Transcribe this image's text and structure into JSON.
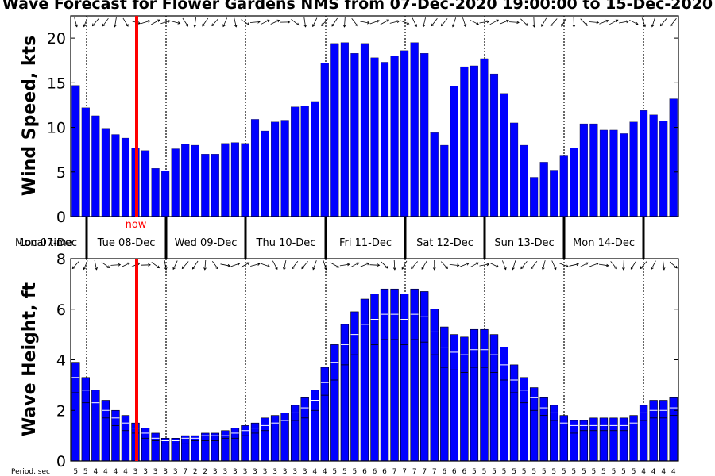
{
  "chart_data": [
    {
      "type": "bar",
      "title": "Wave Forecast for Flower Gardens NMS from 07-Dec-2020 19:00:00 to 15-Dec-2020",
      "ylabel": "Wind Speed, kts",
      "ylim": [
        0,
        22.5
      ],
      "yticks": [
        "0",
        "5",
        "10",
        "15",
        "20"
      ],
      "bar_color": "#0000ff",
      "values": [
        14.7,
        12.2,
        11.3,
        9.9,
        9.2,
        8.8,
        7.7,
        7.4,
        5.4,
        5.1,
        7.6,
        8.1,
        8.0,
        7.0,
        7.0,
        8.2,
        8.3,
        8.2,
        10.9,
        9.6,
        10.6,
        10.8,
        12.3,
        12.4,
        12.9,
        17.2,
        19.4,
        19.5,
        18.3,
        19.4,
        17.8,
        17.3,
        18.0,
        18.6,
        19.5,
        18.3,
        9.4,
        8.0,
        14.6,
        16.8,
        16.9,
        17.7,
        16.0,
        13.8,
        10.5,
        8.0,
        4.4,
        6.1,
        5.2,
        6.8,
        7.7,
        10.4,
        10.4,
        9.7,
        9.7,
        9.3,
        10.6,
        11.9,
        11.4,
        10.7,
        13.2
      ],
      "wind_direction_arrows": true
    },
    {
      "type": "bar",
      "ylabel": "Wave Height, ft",
      "ylim": [
        0,
        8
      ],
      "yticks": [
        "0",
        "2",
        "4",
        "6",
        "8"
      ],
      "bar_color": "#0000ff",
      "series": [
        {
          "values": [
            3.9,
            3.3,
            2.8,
            2.4,
            2.0,
            1.8,
            1.5,
            1.3,
            1.1,
            0.9,
            0.9,
            1.0,
            1.0,
            1.1,
            1.1,
            1.2,
            1.3,
            1.4,
            1.5,
            1.7,
            1.8,
            1.9,
            2.2,
            2.5,
            2.8,
            3.7,
            4.6,
            5.4,
            5.9,
            6.4,
            6.6,
            6.8,
            6.8,
            6.6,
            6.8,
            6.7,
            6.0,
            5.3,
            5.0,
            4.9,
            5.2,
            5.2,
            5.0,
            4.5,
            3.8,
            3.3,
            2.9,
            2.5,
            2.2,
            1.8,
            1.6,
            1.6,
            1.7,
            1.7,
            1.7,
            1.7,
            1.8,
            2.2,
            2.4,
            2.4,
            2.5
          ]
        },
        {
          "values": [
            3.3,
            2.8,
            2.3,
            2.0,
            1.7,
            1.5,
            1.3,
            1.1,
            0.9,
            0.8,
            0.8,
            0.9,
            0.9,
            1.0,
            1.0,
            1.0,
            1.1,
            1.2,
            1.3,
            1.4,
            1.5,
            1.6,
            1.9,
            2.1,
            2.4,
            3.1,
            3.9,
            4.6,
            5.0,
            5.4,
            5.6,
            5.8,
            5.8,
            5.6,
            5.8,
            5.7,
            5.1,
            4.5,
            4.3,
            4.2,
            4.4,
            4.4,
            4.2,
            3.8,
            3.2,
            2.8,
            2.5,
            2.1,
            1.9,
            1.5,
            1.4,
            1.4,
            1.4,
            1.4,
            1.4,
            1.4,
            1.5,
            1.9,
            2.0,
            2.0,
            2.1
          ]
        },
        {
          "values": [
            2.7,
            2.3,
            1.9,
            1.7,
            1.4,
            1.2,
            1.1,
            0.9,
            0.8,
            0.7,
            0.7,
            0.7,
            0.8,
            0.8,
            0.8,
            0.9,
            0.9,
            1.0,
            1.1,
            1.2,
            1.3,
            1.3,
            1.6,
            1.7,
            2.0,
            2.6,
            3.2,
            3.8,
            4.2,
            4.5,
            4.6,
            4.8,
            4.8,
            4.6,
            4.8,
            4.7,
            4.2,
            3.7,
            3.6,
            3.5,
            3.7,
            3.7,
            3.5,
            3.2,
            2.7,
            2.3,
            2.0,
            1.8,
            1.6,
            1.3,
            1.1,
            1.2,
            1.2,
            1.2,
            1.2,
            1.2,
            1.3,
            1.6,
            1.7,
            1.7,
            1.8
          ]
        }
      ],
      "periods": [
        "5",
        "5",
        "4",
        "4",
        "4",
        "4",
        "3",
        "3",
        "3",
        "3",
        "3",
        "7",
        "2",
        "2",
        "3",
        "3",
        "3",
        "3",
        "3",
        "3",
        "3",
        "3",
        "3",
        "3",
        "4",
        "4",
        "5",
        "5",
        "5",
        "6",
        "6",
        "6",
        "7",
        "7",
        "7",
        "7",
        "7",
        "6",
        "6",
        "6",
        "5",
        "5",
        "5",
        "5",
        "5",
        "5",
        "5",
        "5",
        "5",
        "5",
        "5",
        "5",
        "5",
        "5",
        "5",
        "5",
        "5",
        "4",
        "4",
        "4",
        "4"
      ],
      "period_label": "Period, sec",
      "wave_direction_arrows": true
    }
  ],
  "days": [
    "Mon 07-Dec",
    "Tue 08-Dec",
    "Wed 09-Dec",
    "Thu 10-Dec",
    "Fri 11-Dec",
    "Sat 12-Dec",
    "Sun 13-Dec",
    "Mon 14-Dec"
  ],
  "overlap_label": "Local time",
  "now_label": "now",
  "now_color": "#ff0000",
  "bar_color": "#0000ff",
  "bar_edge_color": "#000000",
  "bar_divider_color": "#ffffff"
}
